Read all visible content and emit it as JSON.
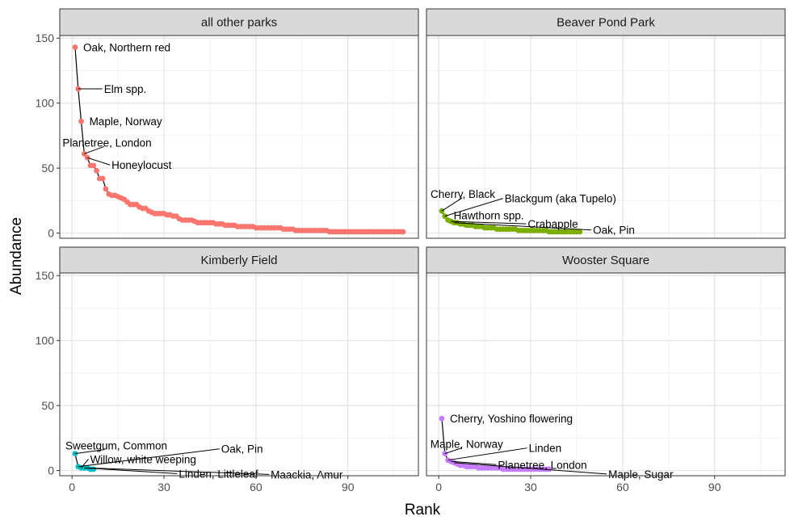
{
  "chart_data": {
    "type": "scatter",
    "xlabel": "Rank",
    "ylabel": "Abundance",
    "xlim": [
      -4,
      113
    ],
    "ylim": [
      -4,
      152
    ],
    "x_ticks": [
      0,
      30,
      60,
      90
    ],
    "y_ticks": [
      0,
      50,
      100,
      150
    ],
    "grid": true,
    "facets": [
      {
        "name": "all other parks",
        "color": "#F8766D",
        "points": [
          [
            1,
            143
          ],
          [
            2,
            111
          ],
          [
            3,
            86
          ],
          [
            4,
            61
          ],
          [
            5,
            58
          ],
          [
            6,
            52
          ],
          [
            7,
            52
          ],
          [
            8,
            48
          ],
          [
            9,
            42
          ],
          [
            10,
            42
          ],
          [
            11,
            34
          ],
          [
            12,
            30
          ],
          [
            13,
            29
          ],
          [
            14,
            29
          ],
          [
            15,
            28
          ],
          [
            16,
            27
          ],
          [
            17,
            26
          ],
          [
            18,
            24
          ],
          [
            19,
            22
          ],
          [
            20,
            22
          ],
          [
            21,
            22
          ],
          [
            22,
            20
          ],
          [
            23,
            19
          ],
          [
            24,
            19
          ],
          [
            25,
            17
          ],
          [
            26,
            16
          ],
          [
            27,
            15
          ],
          [
            28,
            15
          ],
          [
            29,
            15
          ],
          [
            30,
            15
          ],
          [
            31,
            14
          ],
          [
            32,
            14
          ],
          [
            33,
            13
          ],
          [
            34,
            13
          ],
          [
            35,
            11
          ],
          [
            36,
            10
          ],
          [
            37,
            10
          ],
          [
            38,
            10
          ],
          [
            39,
            10
          ],
          [
            40,
            9
          ],
          [
            41,
            8
          ],
          [
            42,
            8
          ],
          [
            43,
            8
          ],
          [
            44,
            8
          ],
          [
            45,
            8
          ],
          [
            46,
            8
          ],
          [
            47,
            7
          ],
          [
            48,
            7
          ],
          [
            49,
            7
          ],
          [
            50,
            6
          ],
          [
            51,
            6
          ],
          [
            52,
            6
          ],
          [
            53,
            6
          ],
          [
            54,
            5
          ],
          [
            55,
            5
          ],
          [
            56,
            5
          ],
          [
            57,
            5
          ],
          [
            58,
            5
          ],
          [
            59,
            5
          ],
          [
            60,
            4
          ],
          [
            61,
            4
          ],
          [
            62,
            4
          ],
          [
            63,
            4
          ],
          [
            64,
            4
          ],
          [
            65,
            4
          ],
          [
            66,
            4
          ],
          [
            67,
            4
          ],
          [
            68,
            4
          ],
          [
            69,
            3
          ],
          [
            70,
            3
          ],
          [
            71,
            3
          ],
          [
            72,
            3
          ],
          [
            73,
            2
          ],
          [
            74,
            2
          ],
          [
            75,
            2
          ],
          [
            76,
            2
          ],
          [
            77,
            2
          ],
          [
            78,
            2
          ],
          [
            79,
            2
          ],
          [
            80,
            2
          ],
          [
            81,
            2
          ],
          [
            82,
            2
          ],
          [
            83,
            2
          ],
          [
            84,
            1
          ],
          [
            85,
            1
          ],
          [
            86,
            1
          ],
          [
            87,
            1
          ],
          [
            88,
            1
          ],
          [
            89,
            1
          ],
          [
            90,
            1
          ],
          [
            91,
            1
          ],
          [
            92,
            1
          ],
          [
            93,
            1
          ],
          [
            94,
            1
          ],
          [
            95,
            1
          ],
          [
            96,
            1
          ],
          [
            97,
            1
          ],
          [
            98,
            1
          ],
          [
            99,
            1
          ],
          [
            100,
            1
          ],
          [
            101,
            1
          ],
          [
            102,
            1
          ],
          [
            103,
            1
          ],
          [
            104,
            1
          ],
          [
            105,
            1
          ],
          [
            106,
            1
          ],
          [
            107,
            1
          ],
          [
            108,
            1
          ]
        ],
        "labels": [
          {
            "rank": 1,
            "value": 143,
            "text": "Oak, Northern red"
          },
          {
            "rank": 2,
            "value": 111,
            "text": "Elm spp."
          },
          {
            "rank": 3,
            "value": 86,
            "text": "Maple, Norway"
          },
          {
            "rank": 4,
            "value": 61,
            "text": "Planetree, London"
          },
          {
            "rank": 5,
            "value": 58,
            "text": "Honeylocust"
          }
        ]
      },
      {
        "name": "Beaver Pond Park",
        "color": "#7CAE00",
        "points": [
          [
            1,
            17
          ],
          [
            2,
            13
          ],
          [
            3,
            10
          ],
          [
            4,
            9
          ],
          [
            5,
            8
          ],
          [
            6,
            8
          ],
          [
            7,
            7
          ],
          [
            8,
            7
          ],
          [
            9,
            6
          ],
          [
            10,
            6
          ],
          [
            11,
            6
          ],
          [
            12,
            5
          ],
          [
            13,
            5
          ],
          [
            14,
            5
          ],
          [
            15,
            4
          ],
          [
            16,
            4
          ],
          [
            17,
            4
          ],
          [
            18,
            4
          ],
          [
            19,
            3
          ],
          [
            20,
            3
          ],
          [
            21,
            3
          ],
          [
            22,
            3
          ],
          [
            23,
            3
          ],
          [
            24,
            3
          ],
          [
            25,
            3
          ],
          [
            26,
            2
          ],
          [
            27,
            2
          ],
          [
            28,
            2
          ],
          [
            29,
            2
          ],
          [
            30,
            2
          ],
          [
            31,
            2
          ],
          [
            32,
            2
          ],
          [
            33,
            2
          ],
          [
            34,
            2
          ],
          [
            35,
            2
          ],
          [
            36,
            1
          ],
          [
            37,
            1
          ],
          [
            38,
            1
          ],
          [
            39,
            1
          ],
          [
            40,
            1
          ],
          [
            41,
            1
          ],
          [
            42,
            1
          ],
          [
            43,
            1
          ],
          [
            44,
            1
          ],
          [
            45,
            1
          ],
          [
            46,
            1
          ]
        ],
        "labels": [
          {
            "rank": 1,
            "value": 17,
            "text": "Cherry, Black"
          },
          {
            "rank": 2,
            "value": 13,
            "text": "Blackgum (aka Tupelo)"
          },
          {
            "rank": 3,
            "value": 10,
            "text": "Hawthorn spp."
          },
          {
            "rank": 4,
            "value": 9,
            "text": "Crabapple"
          },
          {
            "rank": 5,
            "value": 8,
            "text": "Oak, Pin"
          }
        ]
      },
      {
        "name": "Kimberly Field",
        "color": "#00BFC4",
        "points": [
          [
            1,
            13
          ],
          [
            2,
            3
          ],
          [
            3,
            2
          ],
          [
            4,
            2
          ],
          [
            5,
            2
          ],
          [
            6,
            1
          ],
          [
            7,
            1
          ]
        ],
        "labels": [
          {
            "rank": 1,
            "value": 13,
            "text": "Sweetgum, Common"
          },
          {
            "rank": 2,
            "value": 3,
            "text": "Oak, Pin"
          },
          {
            "rank": 3,
            "value": 2,
            "text": "Willow, white weeping"
          },
          {
            "rank": 4,
            "value": 2,
            "text": "Linden, Littleleaf"
          },
          {
            "rank": 5,
            "value": 2,
            "text": "Maackia, Amur"
          }
        ]
      },
      {
        "name": "Wooster Square",
        "color": "#C77CFF",
        "points": [
          [
            1,
            40
          ],
          [
            2,
            13
          ],
          [
            3,
            8
          ],
          [
            4,
            7
          ],
          [
            5,
            6
          ],
          [
            6,
            5
          ],
          [
            7,
            4
          ],
          [
            8,
            4
          ],
          [
            9,
            3
          ],
          [
            10,
            3
          ],
          [
            11,
            3
          ],
          [
            12,
            3
          ],
          [
            13,
            2
          ],
          [
            14,
            2
          ],
          [
            15,
            2
          ],
          [
            16,
            2
          ],
          [
            17,
            2
          ],
          [
            18,
            2
          ],
          [
            19,
            2
          ],
          [
            20,
            2
          ],
          [
            21,
            1
          ],
          [
            22,
            1
          ],
          [
            23,
            1
          ],
          [
            24,
            1
          ],
          [
            25,
            1
          ],
          [
            26,
            1
          ],
          [
            27,
            1
          ],
          [
            28,
            1
          ],
          [
            29,
            1
          ],
          [
            30,
            1
          ],
          [
            31,
            1
          ],
          [
            32,
            1
          ],
          [
            33,
            1
          ],
          [
            34,
            1
          ],
          [
            35,
            1
          ],
          [
            36,
            1
          ]
        ],
        "labels": [
          {
            "rank": 1,
            "value": 40,
            "text": "Cherry, Yoshino flowering"
          },
          {
            "rank": 2,
            "value": 13,
            "text": "Maple, Norway"
          },
          {
            "rank": 3,
            "value": 8,
            "text": "Linden"
          },
          {
            "rank": 4,
            "value": 7,
            "text": "Planetree, London"
          },
          {
            "rank": 5,
            "value": 6,
            "text": "Maple, Sugar"
          }
        ]
      }
    ]
  }
}
